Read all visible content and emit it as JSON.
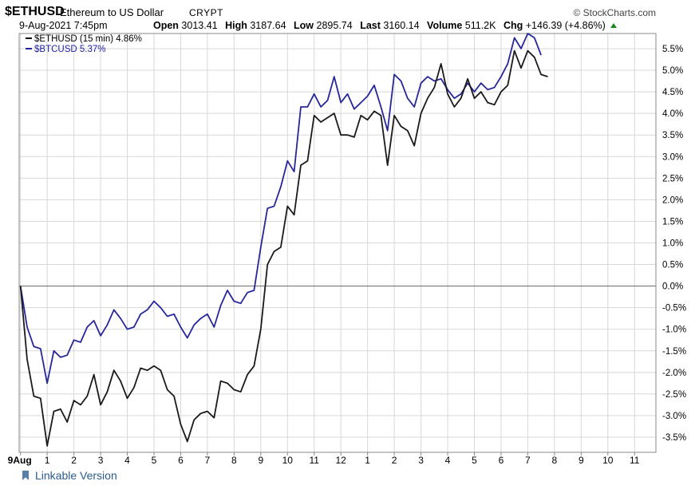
{
  "header": {
    "symbol": "$ETHUSD",
    "name": "Ethereum to US Dollar",
    "exchange": "CRYPT",
    "brand": "© StockCharts.com",
    "date_label": "9-Aug-2021 7:45pm",
    "open_label": "Open",
    "open_value": "3013.41",
    "high_label": "High",
    "high_value": "3187.64",
    "low_label": "Low",
    "low_value": "2895.74",
    "last_label": "Last",
    "last_value": "3160.14",
    "volume_label": "Volume",
    "volume_value": "511.2K",
    "chg_label": "Chg",
    "chg_value": "+146.39 (+4.86%)"
  },
  "legend": [
    {
      "label": "$ETHUSD (15 min) 4.86%",
      "color": "#000000"
    },
    {
      "label": "$BTCUSD 5.37%",
      "color": "#2020a0"
    }
  ],
  "footer": {
    "link_label": "Linkable Version"
  },
  "colors": {
    "eth": "#1a1a1a",
    "btc": "#27279a",
    "grid": "#d8d8d8",
    "zero": "#666666"
  },
  "chart_data": {
    "type": "line",
    "x_unit": "hours since 9-Aug 00:00",
    "xlim": [
      -0.05,
      23.8
    ],
    "ylim": [
      -3.85,
      5.85
    ],
    "grid": true,
    "legend_placement": "top-left",
    "x_ticks": [
      {
        "x": 0,
        "label": "9Aug"
      },
      {
        "x": 1,
        "label": "1"
      },
      {
        "x": 2,
        "label": "2"
      },
      {
        "x": 3,
        "label": "3"
      },
      {
        "x": 4,
        "label": "4"
      },
      {
        "x": 5,
        "label": "5"
      },
      {
        "x": 6,
        "label": "6"
      },
      {
        "x": 7,
        "label": "7"
      },
      {
        "x": 8,
        "label": "8"
      },
      {
        "x": 9,
        "label": "9"
      },
      {
        "x": 10,
        "label": "10"
      },
      {
        "x": 11,
        "label": "11"
      },
      {
        "x": 12,
        "label": "12"
      },
      {
        "x": 13,
        "label": "1"
      },
      {
        "x": 14,
        "label": "2"
      },
      {
        "x": 15,
        "label": "3"
      },
      {
        "x": 16,
        "label": "4"
      },
      {
        "x": 17,
        "label": "5"
      },
      {
        "x": 18,
        "label": "6"
      },
      {
        "x": 19,
        "label": "7"
      },
      {
        "x": 20,
        "label": "8"
      },
      {
        "x": 21,
        "label": "9"
      },
      {
        "x": 22,
        "label": "10"
      },
      {
        "x": 23,
        "label": "11"
      }
    ],
    "y_ticks": [
      {
        "v": 5.5,
        "label": "5.5%"
      },
      {
        "v": 5.0,
        "label": "5.0%"
      },
      {
        "v": 4.5,
        "label": "4.5%"
      },
      {
        "v": 4.0,
        "label": "4.0%"
      },
      {
        "v": 3.5,
        "label": "3.5%"
      },
      {
        "v": 3.0,
        "label": "3.0%"
      },
      {
        "v": 2.5,
        "label": "2.5%"
      },
      {
        "v": 2.0,
        "label": "2.0%"
      },
      {
        "v": 1.5,
        "label": "1.5%"
      },
      {
        "v": 1.0,
        "label": "1.0%"
      },
      {
        "v": 0.5,
        "label": "0.5%"
      },
      {
        "v": 0.0,
        "label": "0.0%"
      },
      {
        "v": -0.5,
        "label": "-0.5%"
      },
      {
        "v": -1.0,
        "label": "-1.0%"
      },
      {
        "v": -1.5,
        "label": "-1.5%"
      },
      {
        "v": -2.0,
        "label": "-2.0%"
      },
      {
        "v": -2.5,
        "label": "-2.5%"
      },
      {
        "v": -3.0,
        "label": "-3.0%"
      },
      {
        "v": -3.5,
        "label": "-3.5%"
      }
    ],
    "series": [
      {
        "name": "$ETHUSD",
        "x_start": 0,
        "x_step": 0.25,
        "values": [
          0.0,
          -1.7,
          -2.55,
          -2.6,
          -3.7,
          -2.9,
          -2.85,
          -3.15,
          -2.65,
          -2.75,
          -2.55,
          -2.05,
          -2.75,
          -2.45,
          -1.95,
          -2.2,
          -2.6,
          -2.35,
          -1.9,
          -1.95,
          -1.85,
          -1.95,
          -2.4,
          -2.55,
          -3.2,
          -3.6,
          -3.1,
          -2.95,
          -2.9,
          -3.05,
          -2.2,
          -2.25,
          -2.4,
          -2.45,
          -2.05,
          -1.85,
          -1.0,
          0.5,
          0.8,
          0.9,
          1.85,
          1.65,
          2.8,
          2.9,
          3.95,
          3.8,
          3.9,
          4.0,
          3.5,
          3.5,
          3.45,
          3.95,
          3.85,
          4.05,
          3.95,
          2.8,
          3.95,
          3.7,
          3.6,
          3.25,
          4.0,
          4.35,
          4.6,
          5.15,
          4.45,
          4.15,
          4.35,
          4.8,
          4.35,
          4.5,
          4.25,
          4.2,
          4.5,
          4.65,
          5.45,
          5.05,
          5.45,
          5.3,
          4.9,
          4.85
        ]
      },
      {
        "name": "$BTCUSD",
        "x_start": 0,
        "x_step": 0.25,
        "values": [
          0.0,
          -0.95,
          -1.4,
          -1.45,
          -2.25,
          -1.5,
          -1.65,
          -1.6,
          -1.25,
          -1.3,
          -0.95,
          -0.8,
          -1.15,
          -0.9,
          -0.55,
          -0.75,
          -1.0,
          -0.95,
          -0.65,
          -0.55,
          -0.35,
          -0.5,
          -0.7,
          -0.65,
          -0.95,
          -1.2,
          -0.9,
          -0.75,
          -0.65,
          -0.95,
          -0.45,
          -0.1,
          -0.35,
          -0.4,
          -0.15,
          -0.1,
          0.9,
          1.8,
          1.85,
          2.3,
          2.9,
          2.65,
          4.15,
          4.15,
          4.45,
          4.15,
          4.3,
          4.85,
          4.25,
          4.45,
          4.1,
          4.25,
          4.4,
          4.65,
          4.15,
          3.6,
          4.9,
          4.75,
          4.35,
          4.15,
          4.7,
          4.85,
          4.75,
          4.8,
          4.55,
          4.35,
          4.45,
          4.7,
          4.5,
          4.7,
          4.55,
          4.6,
          4.85,
          5.15,
          5.75,
          5.5,
          5.85,
          5.75,
          5.35
        ]
      }
    ]
  }
}
